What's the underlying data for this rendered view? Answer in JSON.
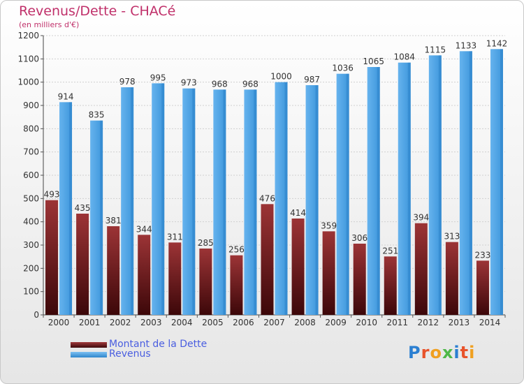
{
  "chart_data": {
    "type": "bar",
    "title": "Revenus/Dette - CHACé",
    "subtitle": "(en milliers d'€)",
    "categories": [
      "2000",
      "2001",
      "2002",
      "2003",
      "2004",
      "2005",
      "2006",
      "2007",
      "2008",
      "2009",
      "2010",
      "2011",
      "2012",
      "2013",
      "2014"
    ],
    "series": [
      {
        "name": "Montant de la Dette",
        "color": "#7a1f22",
        "values": [
          493,
          435,
          381,
          344,
          311,
          285,
          256,
          476,
          414,
          359,
          306,
          251,
          394,
          313,
          233
        ]
      },
      {
        "name": "Revenus",
        "color": "#4aa3e6",
        "values": [
          914,
          835,
          978,
          995,
          973,
          968,
          968,
          1000,
          987,
          1036,
          1065,
          1084,
          1115,
          1133,
          1142
        ]
      }
    ],
    "ylim": [
      0,
      1200
    ],
    "yticks": [
      0,
      100,
      200,
      300,
      400,
      500,
      600,
      700,
      800,
      900,
      1000,
      1100,
      1200
    ],
    "grid": true,
    "legend_position": "bottom-left"
  },
  "logo": {
    "letters": [
      {
        "ch": "P",
        "color": "#2b7fd1"
      },
      {
        "ch": "r",
        "color": "#e8532b"
      },
      {
        "ch": "o",
        "color": "#f0a020"
      },
      {
        "ch": "x",
        "color": "#4fb848"
      },
      {
        "ch": "i",
        "color": "#2b7fd1"
      },
      {
        "ch": "t",
        "color": "#e8532b"
      },
      {
        "ch": "i",
        "color": "#f0a020"
      }
    ]
  }
}
